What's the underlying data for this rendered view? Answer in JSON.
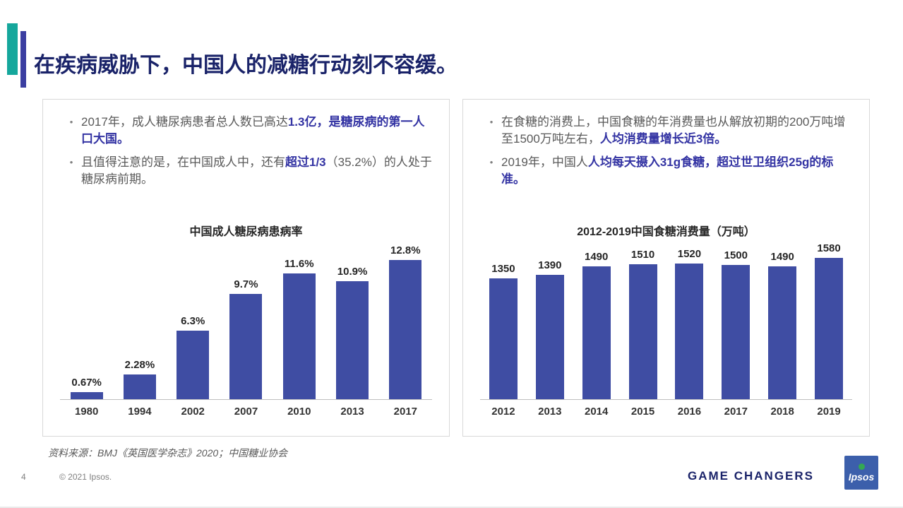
{
  "slide": {
    "title": "在疾病威胁下，中国人的减糖行动刻不容缓。",
    "bullet_char": "•",
    "source_note": "资料来源：BMJ《英国医学杂志》2020；中国糖业协会",
    "page_number": "4",
    "copyright": "© 2021 Ipsos.",
    "tagline": "GAME CHANGERS",
    "logo_text": "Ipsos"
  },
  "left_panel": {
    "bullets": [
      {
        "segments": [
          {
            "text": "2017年，成人糖尿病患者总人数已高达",
            "em": false
          },
          {
            "text": "1.3亿，是糖尿病的第一人口大国。",
            "em": true
          }
        ]
      },
      {
        "segments": [
          {
            "text": "且值得注意的是，在中国成人中，还有",
            "em": false
          },
          {
            "text": "超过1/3",
            "em": true
          },
          {
            "text": "（35.2%）的人处于糖尿病前期。",
            "em": false
          }
        ]
      }
    ]
  },
  "right_panel": {
    "bullets": [
      {
        "segments": [
          {
            "text": "在食糖的消费上，中国食糖的年消费量也从解放初期的200万吨增至1500万吨左右，",
            "em": false
          },
          {
            "text": "人均消费量增长近3倍。",
            "em": true
          }
        ]
      },
      {
        "segments": [
          {
            "text": "2019年，中国人",
            "em": false
          },
          {
            "text": "人均每天摄入31g食糖，超过世卫组织25g的标准。",
            "em": true
          }
        ]
      }
    ]
  },
  "chart_data": [
    {
      "type": "bar",
      "title": "中国成人糖尿病患病率",
      "categories": [
        "1980",
        "1994",
        "2002",
        "2007",
        "2010",
        "2013",
        "2017"
      ],
      "values": [
        0.67,
        2.28,
        6.3,
        9.7,
        11.6,
        10.9,
        12.8
      ],
      "labels": [
        "0.67%",
        "2.28%",
        "6.3%",
        "9.7%",
        "11.6%",
        "10.9%",
        "12.8%"
      ],
      "unit": "%",
      "ylim": [
        0,
        14
      ],
      "grid": false,
      "legend": false
    },
    {
      "type": "bar",
      "title": "2012-2019中国食糖消费量（万吨）",
      "categories": [
        "2012",
        "2013",
        "2014",
        "2015",
        "2016",
        "2017",
        "2018",
        "2019"
      ],
      "values": [
        1350,
        1390,
        1490,
        1510,
        1520,
        1500,
        1490,
        1580
      ],
      "labels": [
        "1350",
        "1390",
        "1490",
        "1510",
        "1520",
        "1500",
        "1490",
        "1580"
      ],
      "unit": "万吨",
      "ylim": [
        0,
        1700
      ],
      "grid": false,
      "legend": false
    }
  ],
  "colors": {
    "accent_teal": "#15A79C",
    "accent_indigo": "#3B3EA1",
    "title_text": "#1A2369",
    "highlight_text": "#3333A3",
    "body_text": "#595959",
    "bar_fill": "#3F4DA3",
    "value_label": "#262626",
    "logo_blue": "#3C5FAB",
    "logo_green": "#34A853"
  }
}
